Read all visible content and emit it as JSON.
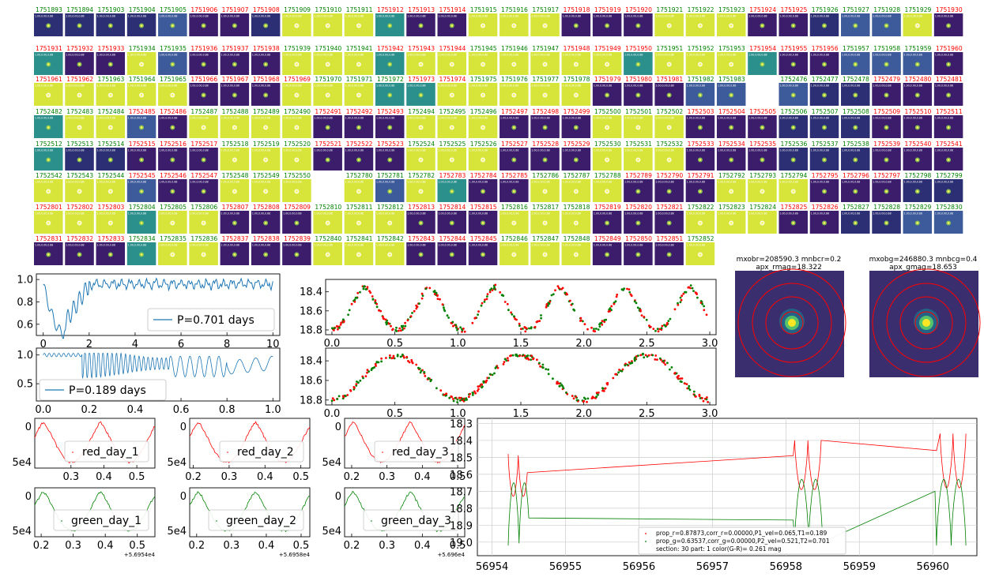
{
  "stamps": {
    "rows": [
      {
        "ids": [
          "1751893",
          "1751894",
          "1751903",
          "1751904",
          "1751905",
          "1751906",
          "1751907",
          "1751908",
          "1751909",
          "1751910",
          "1751911",
          "1751912",
          "1751913",
          "1751914",
          "1751915",
          "1751916",
          "1751917",
          "1751918",
          "1751919",
          "1751920",
          "1751921",
          "1751922",
          "1751923",
          "1751924",
          "1751925",
          "1751926",
          "1751927",
          "1751928",
          "1751929",
          "1751930"
        ],
        "colors": [
          "g",
          "g",
          "g",
          "g",
          "g",
          "r",
          "r",
          "r",
          "g",
          "g",
          "g",
          "r",
          "r",
          "r",
          "g",
          "g",
          "g",
          "r",
          "r",
          "r",
          "g",
          "g",
          "g",
          "r",
          "r",
          "g",
          "g",
          "g",
          "g",
          "r"
        ],
        "bgs": [
          "n",
          "n",
          "n",
          "n",
          "b",
          "p",
          "p",
          "n",
          "y",
          "y",
          "y",
          "t",
          "p",
          "p",
          "y",
          "y",
          "y",
          "p",
          "p",
          "p",
          "y",
          "y",
          "y",
          "p",
          "p",
          "n",
          "b",
          "b",
          "y",
          "p"
        ]
      },
      {
        "ids": [
          "1751931",
          "1751932",
          "1751933",
          "1751934",
          "1751935",
          "1751936",
          "1751937",
          "1751938",
          "1751939",
          "1751940",
          "1751941",
          "1751942",
          "1751943",
          "1751944",
          "1751945",
          "1751946",
          "1751947",
          "1751948",
          "1751949",
          "1751950",
          "1751951",
          "1751952",
          "1751953",
          "1751954",
          "1751955",
          "1751956",
          "1751957",
          "1751958",
          "1751959",
          "1751960"
        ],
        "colors": [
          "r",
          "r",
          "r",
          "g",
          "g",
          "r",
          "r",
          "r",
          "g",
          "g",
          "g",
          "r",
          "r",
          "r",
          "g",
          "g",
          "g",
          "r",
          "r",
          "r",
          "g",
          "g",
          "g",
          "r",
          "r",
          "r",
          "g",
          "g",
          "g",
          "r"
        ],
        "bgs": [
          "t",
          "p",
          "p",
          "y",
          "b",
          "p",
          "p",
          "p",
          "y",
          "y",
          "y",
          "t",
          "y",
          "y",
          "y",
          "y",
          "y",
          "y",
          "y",
          "t",
          "y",
          "y",
          "y",
          "t",
          "p",
          "p",
          "b",
          "b",
          "b",
          "p"
        ]
      },
      {
        "ids": [
          "1751961",
          "1751962",
          "1751963",
          "1751964",
          "1751965",
          "1751966",
          "1751967",
          "1751968",
          "1751969",
          "1751970",
          "1751971",
          "1751972",
          "1751973",
          "1751974",
          "1751975",
          "1751976",
          "1751977",
          "1751978",
          "1751979",
          "1751980",
          "1751981",
          "1751982",
          "1751983",
          "",
          "1752476",
          "1752477",
          "1752478",
          "1752479",
          "1752480",
          "1752481"
        ],
        "colors": [
          "r",
          "r",
          "g",
          "g",
          "g",
          "r",
          "r",
          "r",
          "r",
          "g",
          "g",
          "g",
          "r",
          "r",
          "g",
          "g",
          "g",
          "g",
          "r",
          "r",
          "r",
          "g",
          "g",
          "",
          "g",
          "g",
          "g",
          "r",
          "r",
          "r"
        ],
        "bgs": [
          "y",
          "y",
          "y",
          "y",
          "y",
          "p",
          "p",
          "p",
          "y",
          "y",
          "y",
          "t",
          "t",
          "y",
          "y",
          "y",
          "y",
          "y",
          "p",
          "p",
          "p",
          "b",
          "b",
          "",
          "b",
          "n",
          "n",
          "p",
          "p",
          "p"
        ]
      },
      {
        "ids": [
          "1752482",
          "1752483",
          "1752484",
          "1752485",
          "1752486",
          "1752487",
          "1752488",
          "1752489",
          "1752490",
          "1752491",
          "1752492",
          "1752493",
          "1752494",
          "1752495",
          "1752496",
          "1752497",
          "1752498",
          "1752499",
          "1752500",
          "1752501",
          "1752502",
          "1752503",
          "1752504",
          "1752505",
          "1752506",
          "1752507",
          "1752508",
          "1752509",
          "1752510",
          "1752511"
        ],
        "colors": [
          "g",
          "g",
          "g",
          "r",
          "r",
          "g",
          "g",
          "g",
          "g",
          "r",
          "r",
          "r",
          "g",
          "g",
          "g",
          "r",
          "r",
          "r",
          "g",
          "g",
          "g",
          "r",
          "r",
          "r",
          "g",
          "g",
          "g",
          "r",
          "r",
          "r"
        ],
        "bgs": [
          "t",
          "y",
          "y",
          "b",
          "p",
          "y",
          "y",
          "y",
          "y",
          "p",
          "p",
          "p",
          "y",
          "y",
          "y",
          "p",
          "p",
          "p",
          "y",
          "y",
          "y",
          "p",
          "p",
          "p",
          "n",
          "n",
          "n",
          "p",
          "p",
          "p"
        ]
      },
      {
        "ids": [
          "1752512",
          "1752513",
          "1752514",
          "1752515",
          "1752516",
          "1752517",
          "1752518",
          "1752519",
          "1752520",
          "1752521",
          "1752522",
          "1752523",
          "1752524",
          "1752525",
          "1752526",
          "1752527",
          "1752528",
          "1752529",
          "1752530",
          "1752531",
          "1752532",
          "1752533",
          "1752534",
          "1752535",
          "1752536",
          "1752537",
          "1752538",
          "1752539",
          "1752540",
          "1752541"
        ],
        "colors": [
          "g",
          "g",
          "g",
          "r",
          "r",
          "r",
          "g",
          "g",
          "g",
          "r",
          "r",
          "r",
          "g",
          "g",
          "g",
          "r",
          "r",
          "r",
          "g",
          "g",
          "g",
          "r",
          "r",
          "r",
          "g",
          "g",
          "g",
          "r",
          "r",
          "r"
        ],
        "bgs": [
          "t",
          "n",
          "n",
          "p",
          "p",
          "p",
          "y",
          "y",
          "y",
          "p",
          "p",
          "p",
          "y",
          "y",
          "y",
          "p",
          "p",
          "p",
          "y",
          "y",
          "y",
          "p",
          "p",
          "p",
          "n",
          "n",
          "n",
          "p",
          "p",
          "p"
        ]
      },
      {
        "ids": [
          "1752542",
          "1752543",
          "1752544",
          "1752545",
          "1752546",
          "1752547",
          "1752548",
          "1752549",
          "1752550",
          "",
          "1752780",
          "1752781",
          "1752782",
          "1752783",
          "1752784",
          "1752785",
          "1752786",
          "1752787",
          "1752788",
          "1752789",
          "1752790",
          "1752791",
          "1752792",
          "1752793",
          "1752794",
          "1752795",
          "1752796",
          "1752797",
          "1752798",
          "1752799"
        ],
        "colors": [
          "g",
          "g",
          "g",
          "r",
          "r",
          "r",
          "g",
          "g",
          "g",
          "",
          "g",
          "g",
          "g",
          "r",
          "r",
          "r",
          "g",
          "g",
          "g",
          "r",
          "r",
          "r",
          "g",
          "g",
          "g",
          "r",
          "r",
          "r",
          "g",
          "g"
        ],
        "bgs": [
          "y",
          "y",
          "y",
          "b",
          "p",
          "p",
          "y",
          "y",
          "y",
          "",
          "y",
          "b",
          "y",
          "t",
          "p",
          "p",
          "y",
          "y",
          "y",
          "p",
          "p",
          "p",
          "y",
          "y",
          "y",
          "p",
          "p",
          "p",
          "n",
          "n"
        ]
      },
      {
        "ids": [
          "1752801",
          "1752802",
          "1752803",
          "1752804",
          "1752805",
          "1752806",
          "1752807",
          "1752808",
          "1752809",
          "1752810",
          "1752811",
          "1752812",
          "1752813",
          "1752814",
          "1752815",
          "1752816",
          "1752817",
          "1752818",
          "1752819",
          "1752820",
          "1752821",
          "1752822",
          "1752823",
          "1752824",
          "1752825",
          "1752826",
          "1752827",
          "1752828",
          "1752829",
          "1752830"
        ],
        "colors": [
          "r",
          "r",
          "r",
          "g",
          "g",
          "g",
          "r",
          "r",
          "r",
          "g",
          "g",
          "g",
          "r",
          "r",
          "r",
          "g",
          "g",
          "g",
          "r",
          "r",
          "r",
          "g",
          "g",
          "g",
          "r",
          "r",
          "g",
          "g",
          "g",
          "g"
        ],
        "bgs": [
          "y",
          "y",
          "y",
          "t",
          "y",
          "y",
          "p",
          "p",
          "p",
          "y",
          "y",
          "y",
          "p",
          "p",
          "p",
          "y",
          "y",
          "y",
          "p",
          "p",
          "p",
          "y",
          "y",
          "y",
          "p",
          "p",
          "n",
          "n",
          "b",
          "b"
        ]
      },
      {
        "ids": [
          "1752831",
          "1752832",
          "1752833",
          "1752834",
          "1752835",
          "1752836",
          "1752837",
          "1752838",
          "1752839",
          "1752840",
          "1752841",
          "1752842",
          "1752843",
          "1752844",
          "1752845",
          "1752846",
          "1752847",
          "1752848",
          "1752849",
          "1752850",
          "1752851",
          "1752852",
          "",
          "",
          "",
          "",
          "",
          "",
          "",
          ""
        ],
        "colors": [
          "r",
          "r",
          "r",
          "g",
          "g",
          "g",
          "r",
          "r",
          "r",
          "g",
          "g",
          "g",
          "r",
          "r",
          "r",
          "g",
          "g",
          "g",
          "r",
          "r",
          "r",
          "g",
          "",
          "",
          "",
          "",
          "",
          "",
          "",
          ""
        ],
        "bgs": [
          "p",
          "p",
          "p",
          "t",
          "y",
          "y",
          "p",
          "p",
          "p",
          "y",
          "y",
          "y",
          "p",
          "p",
          "p",
          "y",
          "y",
          "y",
          "p",
          "p",
          "p",
          "y",
          "",
          "",
          "",
          "",
          "",
          "",
          "",
          ""
        ]
      }
    ],
    "subtext": "1.00,0.00,0.88"
  },
  "colors": {
    "red": "#ff0000",
    "green": "#008000",
    "blue": "#1f77b4",
    "stamp_purple": "#3b1d6b",
    "stamp_yellow": "#d7e43a",
    "stamp_teal": "#2b8f8c",
    "stamp_navy": "#2c2f73",
    "stamp_blue": "#3d5a9a"
  },
  "chart_data": [
    {
      "id": "periodogram_1",
      "type": "line",
      "xlim": [
        -0.3,
        10.3
      ],
      "ylim": [
        0.5,
        1.05
      ],
      "xticks": [
        0,
        2,
        4,
        6,
        8,
        10
      ],
      "yticks": [
        0.6,
        0.8,
        1.0
      ],
      "xticklabels": [
        "0",
        "2",
        "4",
        "6",
        "8",
        "10"
      ],
      "yticklabels": [
        "0.6",
        "0.8",
        "1.0"
      ],
      "legend": "P=0.701 days"
    },
    {
      "id": "periodogram_2",
      "type": "line",
      "xlim": [
        -0.03,
        1.03
      ],
      "ylim": [
        0.2,
        1.12
      ],
      "xticks": [
        0.0,
        0.2,
        0.4,
        0.6,
        0.8,
        1.0
      ],
      "yticks": [
        0.5,
        1.0
      ],
      "xticklabels": [
        "0.0",
        "0.2",
        "0.4",
        "0.6",
        "0.8",
        "1.0"
      ],
      "yticklabels": [
        "0.5",
        "1.0"
      ],
      "legend": "P=0.189 days"
    },
    {
      "id": "folded_1",
      "type": "scatter",
      "xlim": [
        -0.05,
        3.05
      ],
      "ylim": [
        18.85,
        18.27
      ],
      "inverted_y": true,
      "xticks": [
        0.0,
        0.5,
        1.0,
        1.5,
        2.0,
        2.5,
        3.0
      ],
      "yticks": [
        18.4,
        18.6,
        18.8
      ],
      "xticklabels": [
        "0.0",
        "0.5",
        "1.0",
        "1.5",
        "2.0",
        "2.5",
        "3.0"
      ],
      "yticklabels": [
        "18.4",
        "18.6",
        "18.8"
      ],
      "period_cycles": 5.8
    },
    {
      "id": "folded_2",
      "type": "scatter",
      "xlim": [
        -0.05,
        3.05
      ],
      "ylim": [
        18.85,
        18.27
      ],
      "inverted_y": true,
      "xticks": [
        0.0,
        0.5,
        1.0,
        1.5,
        2.0,
        2.5,
        3.0
      ],
      "yticks": [
        18.4,
        18.6,
        18.8
      ],
      "xticklabels": [
        "0.0",
        "0.5",
        "1.0",
        "1.5",
        "2.0",
        "2.5",
        "3.0"
      ],
      "yticklabels": [
        "18.4",
        "18.6",
        "18.8"
      ],
      "period_cycles": 3
    },
    {
      "id": "red_day_1",
      "type": "line",
      "legend": "red_day_1",
      "xticks": [
        0.3,
        0.4,
        0.5
      ],
      "xticklabels": [
        "0.3",
        "0.4",
        "0.5"
      ],
      "yticklabels": [
        "0",
        "5e4"
      ],
      "xlim": [
        0.19,
        0.555
      ]
    },
    {
      "id": "red_day_2",
      "type": "line",
      "legend": "red_day_2",
      "xticks": [
        0.2,
        0.3,
        0.4,
        0.5
      ],
      "xticklabels": [
        "0.2",
        "0.3",
        "0.4",
        "0.5"
      ],
      "yticklabels": [
        "0",
        "5e4"
      ],
      "xlim": [
        0.19,
        0.525
      ]
    },
    {
      "id": "red_day_3",
      "type": "line",
      "legend": "red_day_3",
      "xticks": [
        0.2,
        0.3,
        0.4,
        0.5
      ],
      "xticklabels": [
        "0.2",
        "0.3",
        "0.4",
        "0.5"
      ],
      "yticklabels": [
        "0",
        "5e4"
      ],
      "xlim": [
        0.18,
        0.52
      ]
    },
    {
      "id": "green_day_1",
      "type": "line",
      "legend": "green_day_1",
      "xticks": [
        0.2,
        0.3,
        0.4,
        0.5
      ],
      "xticklabels": [
        "0.2",
        "0.3",
        "0.4",
        "0.5"
      ],
      "yticklabels": [
        "0",
        "5e4"
      ],
      "offset": "+5.6954e4",
      "xlim": [
        0.18,
        0.555
      ]
    },
    {
      "id": "green_day_2",
      "type": "line",
      "legend": "green_day_2",
      "xticks": [
        0.2,
        0.3,
        0.4,
        0.5
      ],
      "xticklabels": [
        "0.2",
        "0.3",
        "0.4",
        "0.5"
      ],
      "yticklabels": [
        "0",
        "5e4"
      ],
      "offset": "+5.6958e4",
      "xlim": [
        0.18,
        0.525
      ]
    },
    {
      "id": "green_day_3",
      "type": "line",
      "legend": "green_day_3",
      "xticks": [
        0.2,
        0.3,
        0.4,
        0.5
      ],
      "xticklabels": [
        "0.2",
        "0.3",
        "0.4",
        "0.5"
      ],
      "yticklabels": [
        "0",
        "5e4"
      ],
      "offset": "+5.696e4",
      "xlim": [
        0.18,
        0.52
      ]
    },
    {
      "id": "lightcurve",
      "type": "line",
      "xlim": [
        56953.8,
        56960.6
      ],
      "ylim": [
        19.08,
        18.27
      ],
      "inverted_y": true,
      "xticks": [
        56954,
        56955,
        56956,
        56957,
        56958,
        56959,
        56960
      ],
      "xticklabels": [
        "56954",
        "56955",
        "56956",
        "56957",
        "56958",
        "56959",
        "56960"
      ],
      "yticks": [
        18.3,
        18.4,
        18.5,
        18.6,
        18.7,
        18.8,
        18.9,
        19.0
      ],
      "yticklabels": [
        "18.3",
        "18.4",
        "18.5",
        "18.6",
        "18.7",
        "18.8",
        "18.9",
        "19.0"
      ],
      "legend": [
        "prop_r=0.87873,corr_r=0.00000,P1_vel=0.065,T1=0.189",
        "prop_g=0.63537,corr_g=0.00000,P2_vel=0.521,T2=0.701",
        "section: 30  part: 1  color(G-R)= 0.261 mag"
      ]
    }
  ],
  "cutouts": [
    {
      "title_line1": "mxobr=208590.3 mnbcr=0.2",
      "title_line2": "apx_rmag=18.322"
    },
    {
      "title_line1": "mxobg=246880.3 mnbcg=0.4",
      "title_line2": "apx_gmag=18.653"
    }
  ]
}
